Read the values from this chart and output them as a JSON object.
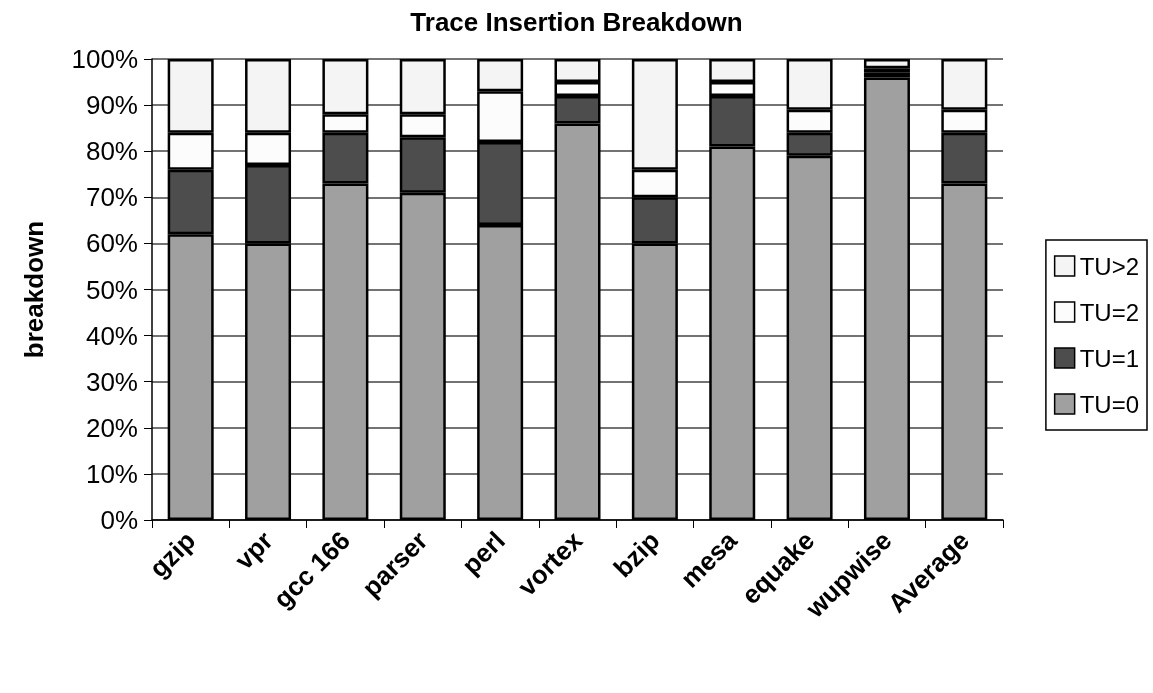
{
  "chart_data": {
    "type": "bar",
    "title": "Trace Insertion Breakdown",
    "ylabel": "breakdown",
    "stacked": true,
    "categories": [
      "gzip",
      "vpr",
      "gcc 166",
      "parser",
      "perl",
      "vortex",
      "bzip",
      "mesa",
      "equake",
      "wupwise",
      "Average"
    ],
    "series": [
      {
        "name": "TU=0",
        "color": "#a0a0a0",
        "values": [
          62,
          60,
          73,
          71,
          64,
          86,
          60,
          81,
          79,
          96,
          73
        ]
      },
      {
        "name": "TU=1",
        "color": "#4d4d4d",
        "values": [
          14,
          17,
          11,
          12,
          18,
          6,
          10,
          11,
          5,
          1,
          11
        ]
      },
      {
        "name": "TU=2",
        "color": "#fcfcfc",
        "values": [
          8,
          7,
          4,
          5,
          11,
          3,
          6,
          3,
          5,
          1,
          5
        ]
      },
      {
        "name": "TU>2",
        "color": "#f4f4f4",
        "values": [
          16,
          16,
          12,
          12,
          7,
          5,
          24,
          5,
          11,
          2,
          11
        ]
      }
    ],
    "ylim": [
      0,
      100
    ],
    "yticks": [
      {
        "value": 0,
        "label": "0%"
      },
      {
        "value": 10,
        "label": "10%"
      },
      {
        "value": 20,
        "label": "20%"
      },
      {
        "value": 30,
        "label": "30%"
      },
      {
        "value": 40,
        "label": "40%"
      },
      {
        "value": 50,
        "label": "50%"
      },
      {
        "value": 60,
        "label": "60%"
      },
      {
        "value": 70,
        "label": "70%"
      },
      {
        "value": 80,
        "label": "80%"
      },
      {
        "value": 90,
        "label": "90%"
      },
      {
        "value": 100,
        "label": "100%"
      }
    ],
    "grid": "y",
    "legend": "right"
  }
}
